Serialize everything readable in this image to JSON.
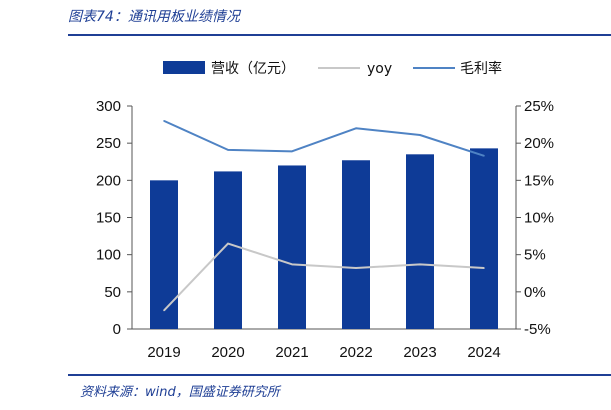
{
  "header": {
    "title": "图表74：通讯用板业绩情况"
  },
  "footer": {
    "source": "资料来源：wind，国盛证券研究所"
  },
  "colors": {
    "bar": "#0e3b97",
    "yoy": "#c8c8c8",
    "margin": "#4f83c4",
    "accent": "#1f3f95"
  },
  "chart_data": {
    "type": "bar",
    "categories": [
      "2019",
      "2020",
      "2021",
      "2022",
      "2023",
      "2024"
    ],
    "series": [
      {
        "name": "营收（亿元）",
        "kind": "bar",
        "axis": "left",
        "values": [
          200,
          212,
          220,
          227,
          235,
          243
        ]
      },
      {
        "name": "yoy",
        "kind": "line",
        "axis": "right",
        "values": [
          -2.5,
          6.5,
          3.7,
          3.2,
          3.7,
          3.2
        ]
      },
      {
        "name": "毛利率",
        "kind": "line",
        "axis": "right",
        "values": [
          23.0,
          19.1,
          18.9,
          22.0,
          21.1,
          18.3
        ]
      }
    ],
    "left_axis": {
      "ylim": [
        0,
        300
      ],
      "ticks": [
        "0",
        "50",
        "100",
        "150",
        "200",
        "250",
        "300"
      ]
    },
    "right_axis": {
      "ylim": [
        -5,
        25
      ],
      "ticks": [
        "-5%",
        "0%",
        "5%",
        "10%",
        "15%",
        "20%",
        "25%"
      ]
    },
    "legend": {
      "placement": "top"
    }
  }
}
